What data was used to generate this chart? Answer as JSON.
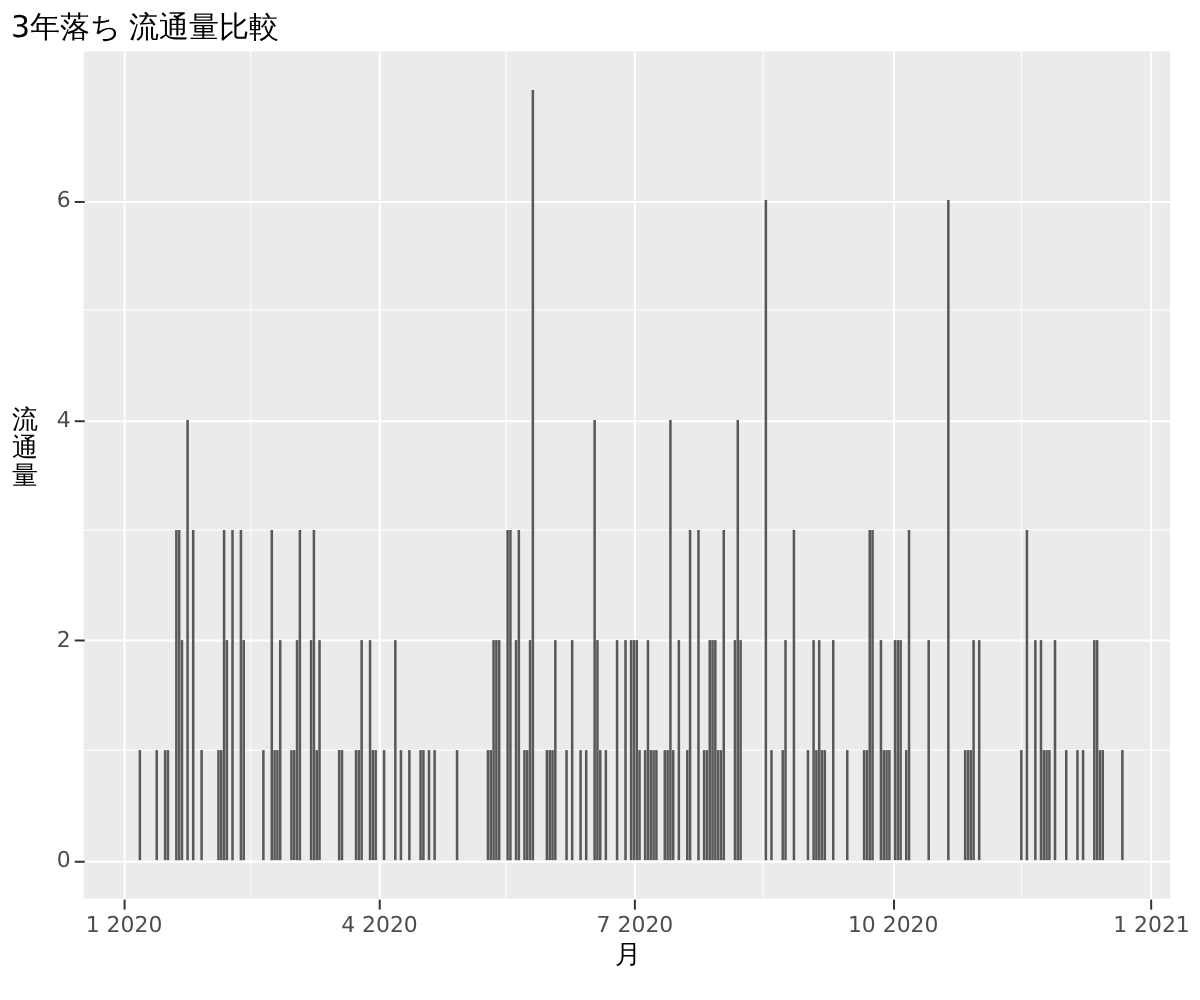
{
  "chart_data": {
    "type": "bar",
    "title": "3年落ち 流通量比較",
    "xlabel": "月",
    "ylabel": "流通量",
    "x": [
      "2020-01-07",
      "2020-01-13",
      "2020-01-16",
      "2020-01-17",
      "2020-01-20",
      "2020-01-21",
      "2020-01-22",
      "2020-01-24",
      "2020-01-26",
      "2020-01-29",
      "2020-02-04",
      "2020-02-05",
      "2020-02-06",
      "2020-02-07",
      "2020-02-09",
      "2020-02-12",
      "2020-02-13",
      "2020-02-20",
      "2020-02-23",
      "2020-02-24",
      "2020-02-25",
      "2020-02-26",
      "2020-03-01",
      "2020-03-02",
      "2020-03-03",
      "2020-03-04",
      "2020-03-08",
      "2020-03-09",
      "2020-03-10",
      "2020-03-11",
      "2020-03-18",
      "2020-03-19",
      "2020-03-24",
      "2020-03-25",
      "2020-03-26",
      "2020-03-29",
      "2020-03-30",
      "2020-03-31",
      "2020-04-03",
      "2020-04-07",
      "2020-04-09",
      "2020-04-12",
      "2020-04-16",
      "2020-04-17",
      "2020-04-19",
      "2020-04-21",
      "2020-04-29",
      "2020-05-10",
      "2020-05-11",
      "2020-05-12",
      "2020-05-13",
      "2020-05-14",
      "2020-05-17",
      "2020-05-18",
      "2020-05-20",
      "2020-05-21",
      "2020-05-23",
      "2020-05-24",
      "2020-05-25",
      "2020-05-26",
      "2020-05-31",
      "2020-06-01",
      "2020-06-02",
      "2020-06-03",
      "2020-06-07",
      "2020-06-09",
      "2020-06-12",
      "2020-06-14",
      "2020-06-17",
      "2020-06-18",
      "2020-06-19",
      "2020-06-21",
      "2020-06-25",
      "2020-06-28",
      "2020-06-30",
      "2020-07-01",
      "2020-07-02",
      "2020-07-03",
      "2020-07-05",
      "2020-07-06",
      "2020-07-07",
      "2020-07-08",
      "2020-07-09",
      "2020-07-12",
      "2020-07-13",
      "2020-07-14",
      "2020-07-15",
      "2020-07-17",
      "2020-07-20",
      "2020-07-21",
      "2020-07-24",
      "2020-07-26",
      "2020-07-27",
      "2020-07-28",
      "2020-07-29",
      "2020-07-30",
      "2020-07-31",
      "2020-08-01",
      "2020-08-02",
      "2020-08-06",
      "2020-08-07",
      "2020-08-08",
      "2020-08-17",
      "2020-08-19",
      "2020-08-23",
      "2020-08-24",
      "2020-08-27",
      "2020-09-01",
      "2020-09-03",
      "2020-09-04",
      "2020-09-05",
      "2020-09-06",
      "2020-09-07",
      "2020-09-10",
      "2020-09-15",
      "2020-09-21",
      "2020-09-22",
      "2020-09-23",
      "2020-09-24",
      "2020-09-27",
      "2020-09-28",
      "2020-09-29",
      "2020-09-30",
      "2020-10-02",
      "2020-10-03",
      "2020-10-04",
      "2020-10-06",
      "2020-10-07",
      "2020-10-14",
      "2020-10-21",
      "2020-10-27",
      "2020-10-28",
      "2020-10-29",
      "2020-10-30",
      "2020-11-01",
      "2020-11-16",
      "2020-11-18",
      "2020-11-21",
      "2020-11-23",
      "2020-11-24",
      "2020-11-25",
      "2020-11-26",
      "2020-11-28",
      "2020-12-02",
      "2020-12-06",
      "2020-12-08",
      "2020-12-12",
      "2020-12-13",
      "2020-12-14",
      "2020-12-15",
      "2020-12-22"
    ],
    "series": [
      {
        "color": "#595959",
        "values": [
          1,
          1,
          1,
          1,
          3,
          3,
          2,
          4,
          3,
          1,
          1,
          1,
          3,
          2,
          3,
          3,
          2,
          1,
          3,
          1,
          1,
          2,
          1,
          1,
          2,
          3,
          2,
          3,
          1,
          2,
          1,
          1,
          1,
          1,
          2,
          2,
          1,
          1,
          1,
          2,
          1,
          1,
          1,
          1,
          1,
          1,
          1,
          1,
          1,
          2,
          2,
          2,
          3,
          3,
          2,
          3,
          1,
          1,
          2,
          7,
          1,
          1,
          1,
          2,
          1,
          2,
          1,
          1,
          4,
          2,
          1,
          1,
          2,
          2,
          2,
          2,
          2,
          1,
          1,
          2,
          1,
          1,
          1,
          1,
          1,
          4,
          1,
          2,
          1,
          3,
          3,
          1,
          1,
          2,
          2,
          2,
          1,
          1,
          3,
          2,
          4,
          2,
          6,
          1,
          1,
          2,
          3,
          1,
          2,
          1,
          2,
          1,
          1,
          2,
          1,
          1,
          1,
          3,
          3,
          2,
          1,
          1,
          1,
          2,
          2,
          2,
          1,
          3,
          2,
          6,
          1,
          1,
          1,
          2,
          2,
          1,
          3,
          2,
          2,
          1,
          1,
          1,
          2,
          1,
          1,
          1,
          2,
          2,
          1,
          1,
          1
        ]
      }
    ],
    "xlim": [
      "2019-12-18",
      "2021-01-08"
    ],
    "xticks": [
      {
        "value": "2020-01-01",
        "label": "1 2020"
      },
      {
        "value": "2020-04-01",
        "label": "4 2020"
      },
      {
        "value": "2020-07-01",
        "label": "7 2020"
      },
      {
        "value": "2020-10-01",
        "label": "10 2020"
      },
      {
        "value": "2021-01-01",
        "label": "1 2021"
      }
    ],
    "ylim": [
      -0.35,
      7.35
    ],
    "yticks": [
      0,
      2,
      4,
      6
    ],
    "grid": true
  }
}
